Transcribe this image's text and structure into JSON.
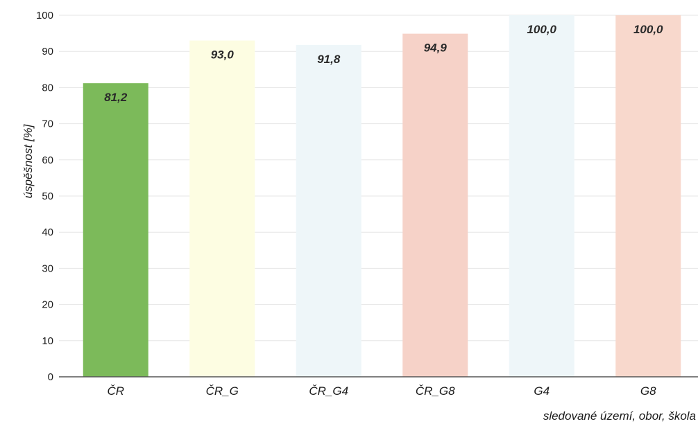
{
  "chart_data": {
    "type": "bar",
    "categories": [
      "ČR",
      "ČR_G",
      "ČR_G4",
      "ČR_G8",
      "G4",
      "G8"
    ],
    "values": [
      81.2,
      93.0,
      91.8,
      94.9,
      100.0,
      100.0
    ],
    "value_labels": [
      "81,2",
      "93,0",
      "91,8",
      "94,9",
      "100,0",
      "100,0"
    ],
    "bar_colors": [
      "#7cba5a",
      "#fdfde2",
      "#eef6f9",
      "#f6d2c8",
      "#eef6f9",
      "#f8d8cc"
    ],
    "ylabel": "úspěšnost [%]",
    "xlabel": "sledované území, obor, škola",
    "ylim": [
      0,
      100
    ],
    "yticks": [
      0,
      10,
      20,
      30,
      40,
      50,
      60,
      70,
      80,
      90,
      100
    ],
    "grid": true,
    "legend": "none"
  }
}
